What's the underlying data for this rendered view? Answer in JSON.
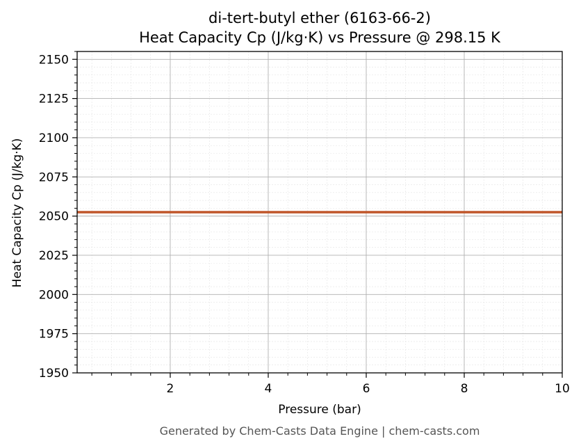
{
  "chart_data": {
    "type": "line",
    "title": "di-tert-butyl ether (6163-66-2)",
    "subtitle": "Heat Capacity Cp (J/kg·K) vs Pressure @ 298.15 K",
    "xlabel": "Pressure (bar)",
    "ylabel": "Heat Capacity Cp (J/kg·K)",
    "xlim": [
      0.1,
      10
    ],
    "ylim": [
      1950,
      2155
    ],
    "x_ticks": [
      2,
      4,
      6,
      8,
      10
    ],
    "x_tick_labels": [
      "2",
      "4",
      "6",
      "8",
      "10"
    ],
    "y_ticks": [
      1950,
      1975,
      2000,
      2025,
      2050,
      2075,
      2100,
      2125,
      2150
    ],
    "y_tick_labels": [
      "1950",
      "1975",
      "2000",
      "2025",
      "2050",
      "2075",
      "2100",
      "2125",
      "2150"
    ],
    "grid": true,
    "minor_grid": true,
    "series": [
      {
        "color": "#c0562a",
        "x": [
          0.1,
          10
        ],
        "y": [
          2052.5,
          2052.5
        ]
      }
    ]
  },
  "footer": "Generated by Chem-Casts Data Engine | chem-casts.com"
}
